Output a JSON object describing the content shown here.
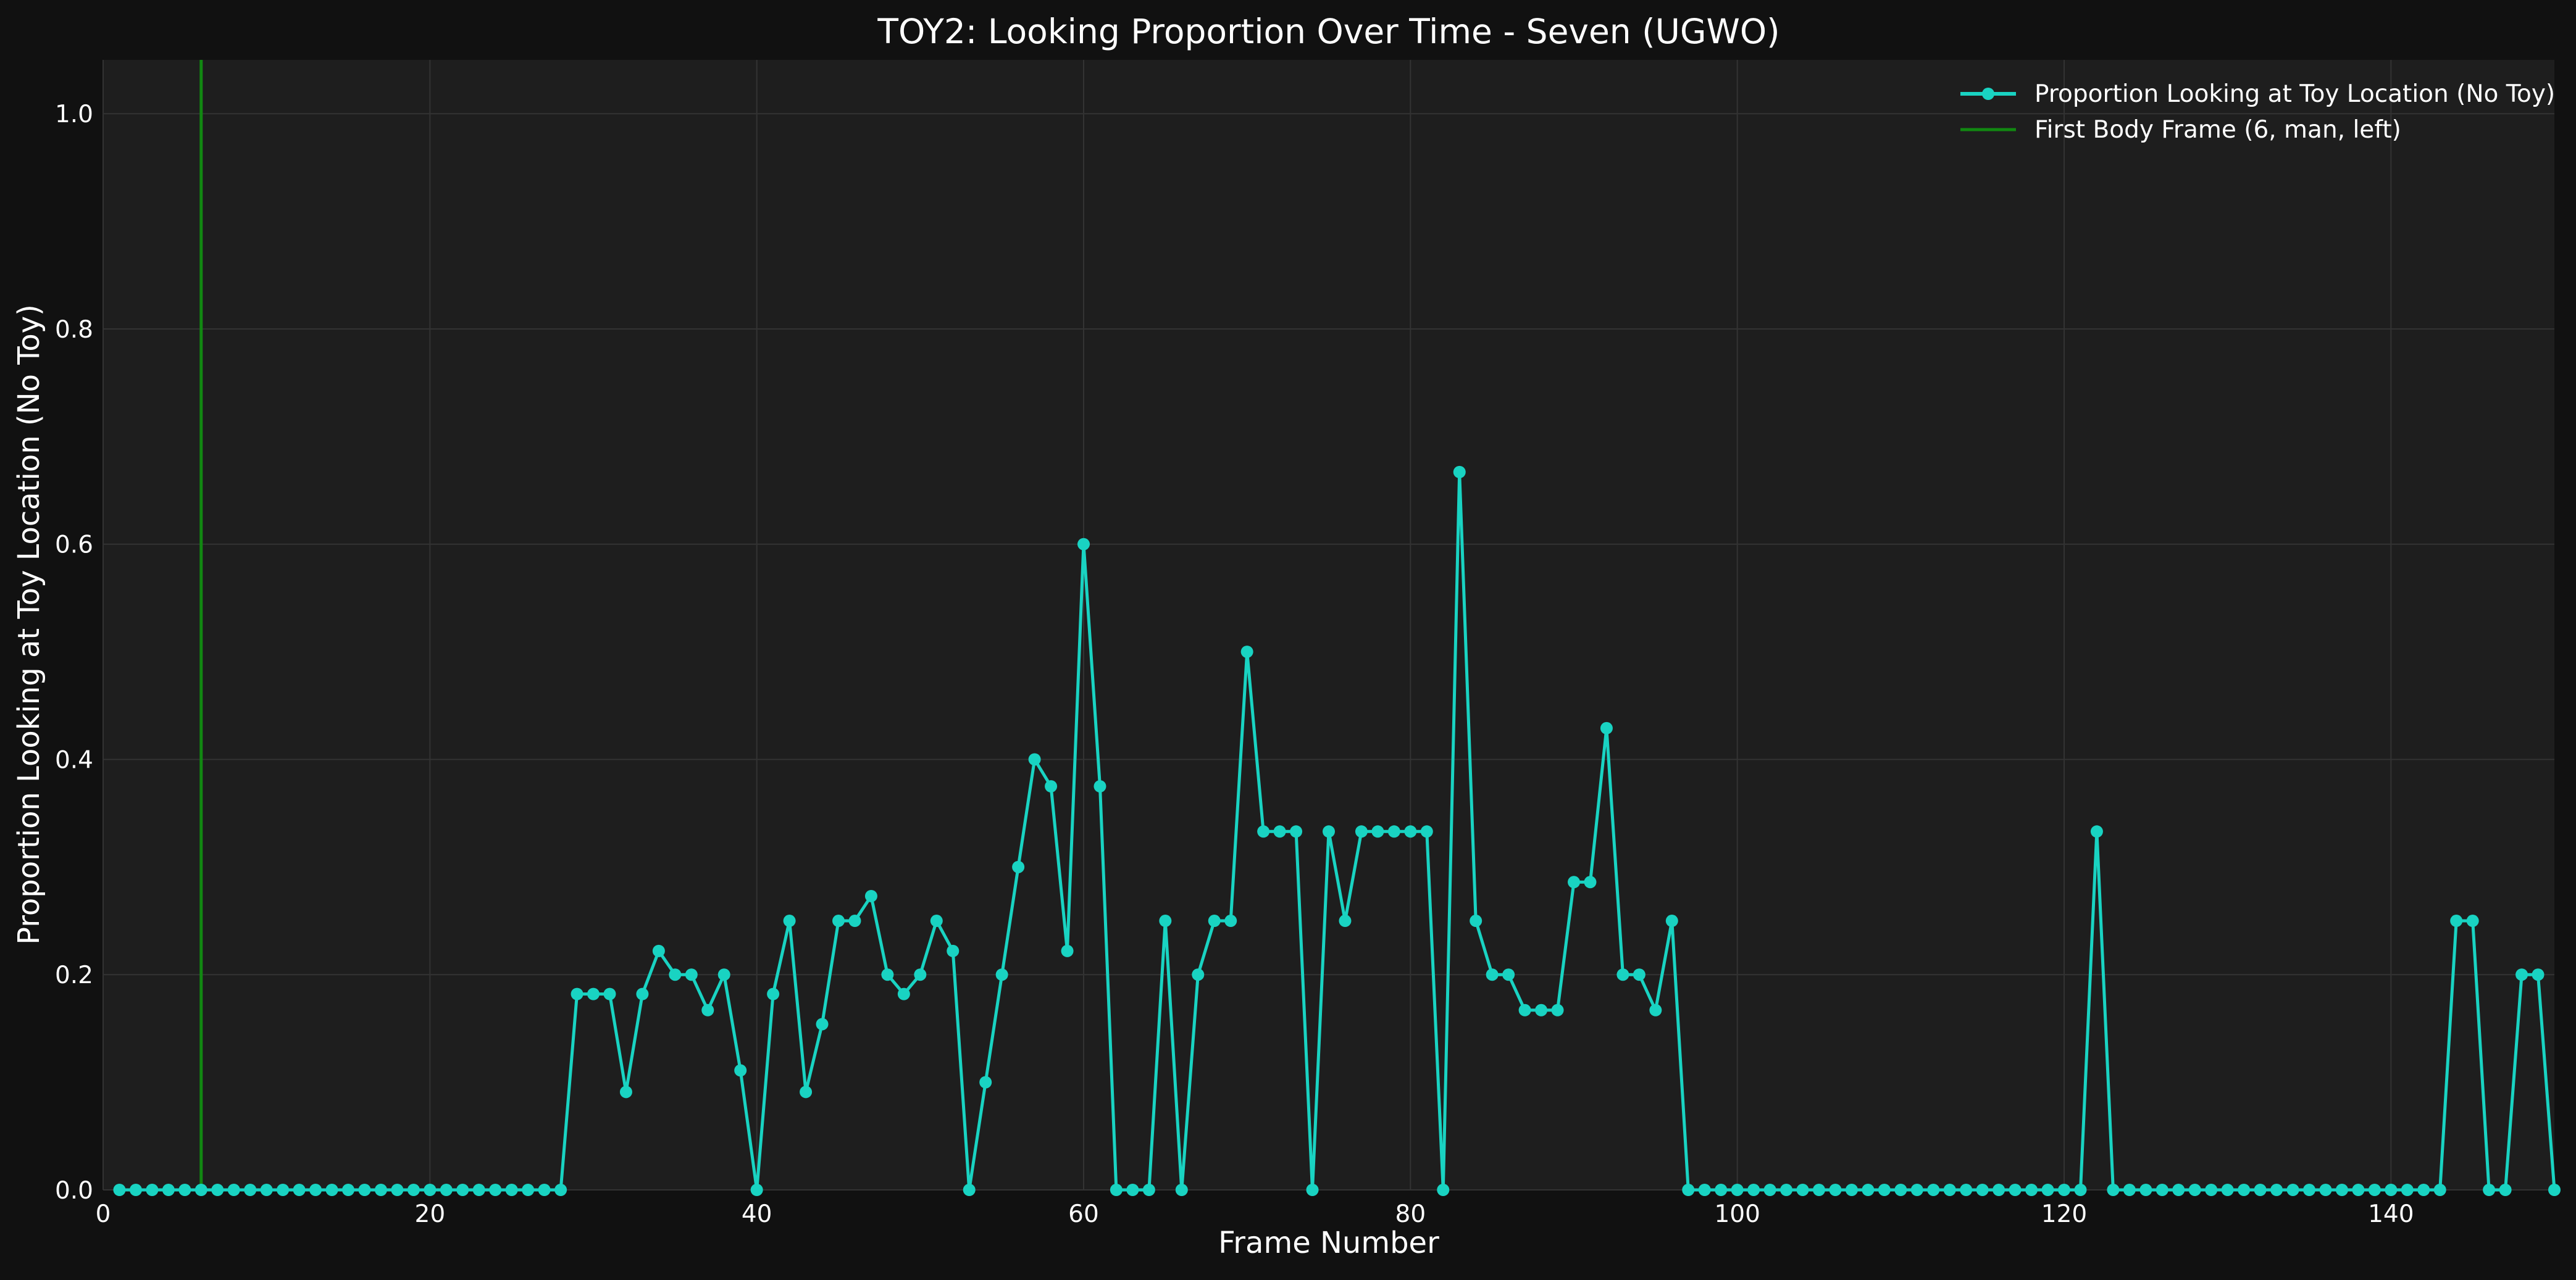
{
  "chart_data": {
    "type": "line",
    "title": "TOY2: Looking Proportion Over Time - Seven (UGWO)",
    "xlabel": "Frame Number",
    "ylabel": "Proportion Looking at Toy Location (No Toy)",
    "xlim": [
      0,
      150
    ],
    "ylim": [
      0,
      1.05
    ],
    "x_ticks": [
      "0",
      "20",
      "40",
      "60",
      "80",
      "100",
      "120",
      "140"
    ],
    "y_ticks": [
      "0.0",
      "0.2",
      "0.4",
      "0.6",
      "0.8",
      "1.0"
    ],
    "grid": true,
    "legend_position": "top-right",
    "colors": {
      "background": "#111111",
      "plot_background": "#1e1e1e",
      "grid": "#333333",
      "series": "#19d3c2",
      "vline": "#118811",
      "text": "#ffffff"
    },
    "series": [
      {
        "name": "Proportion Looking at Toy Location (No Toy)",
        "x": [
          1,
          2,
          3,
          4,
          5,
          6,
          7,
          8,
          9,
          10,
          11,
          12,
          13,
          14,
          15,
          16,
          17,
          18,
          19,
          20,
          21,
          22,
          23,
          24,
          25,
          26,
          27,
          28,
          29,
          30,
          31,
          32,
          33,
          34,
          35,
          36,
          37,
          38,
          39,
          40,
          41,
          42,
          43,
          44,
          45,
          46,
          47,
          48,
          49,
          50,
          51,
          52,
          53,
          54,
          55,
          56,
          57,
          58,
          59,
          60,
          61,
          62,
          63,
          64,
          65,
          66,
          67,
          68,
          69,
          70,
          71,
          72,
          73,
          74,
          75,
          76,
          77,
          78,
          79,
          80,
          81,
          82,
          83,
          84,
          85,
          86,
          87,
          88,
          89,
          90,
          91,
          92,
          93,
          94,
          95,
          96,
          97,
          98,
          99,
          100,
          101,
          102,
          103,
          104,
          105,
          106,
          107,
          108,
          109,
          110,
          111,
          112,
          113,
          114,
          115,
          116,
          117,
          118,
          119,
          120,
          121,
          122,
          123,
          124,
          125,
          126,
          127,
          128,
          129,
          130,
          131,
          132,
          133,
          134,
          135,
          136,
          137,
          138,
          139,
          140,
          141,
          142,
          143,
          144,
          145,
          146,
          147,
          148,
          149,
          150
        ],
        "y": [
          0,
          0,
          0,
          0,
          0,
          0,
          0,
          0,
          0,
          0,
          0,
          0,
          0,
          0,
          0,
          0,
          0,
          0,
          0,
          0,
          0,
          0,
          0,
          0,
          0,
          0,
          0,
          0,
          0.182,
          0.182,
          0.182,
          0.091,
          0.182,
          0.222,
          0.2,
          0.2,
          0.167,
          0.2,
          0.111,
          0,
          0.182,
          0.25,
          0.091,
          0.154,
          0.25,
          0.25,
          0.273,
          0.2,
          0.182,
          0.2,
          0.25,
          0.222,
          0,
          0.1,
          0.2,
          0.3,
          0.4,
          0.375,
          0.222,
          0.6,
          0.375,
          0,
          0,
          0,
          0.25,
          0,
          0.2,
          0.25,
          0.25,
          0.5,
          0.333,
          0.333,
          0.333,
          0,
          0.333,
          0.25,
          0.333,
          0.333,
          0.333,
          0.333,
          0.333,
          0,
          0.667,
          0.25,
          0.2,
          0.2,
          0.167,
          0.167,
          0.167,
          0.286,
          0.286,
          0.429,
          0.2,
          0.2,
          0.167,
          0.25,
          0,
          0,
          0,
          0,
          0,
          0,
          0,
          0,
          0,
          0,
          0,
          0,
          0,
          0,
          0,
          0,
          0,
          0,
          0,
          0,
          0,
          0,
          0,
          0,
          0,
          0.333,
          0,
          0,
          0,
          0,
          0,
          0,
          0,
          0,
          0,
          0,
          0,
          0,
          0,
          0,
          0,
          0,
          0,
          0,
          0,
          0,
          0,
          0.25,
          0.25,
          0,
          0,
          0.2,
          0.2,
          0
        ]
      }
    ],
    "vlines": [
      {
        "name": "First Body Frame (6, man, left)",
        "x": 6
      }
    ]
  }
}
